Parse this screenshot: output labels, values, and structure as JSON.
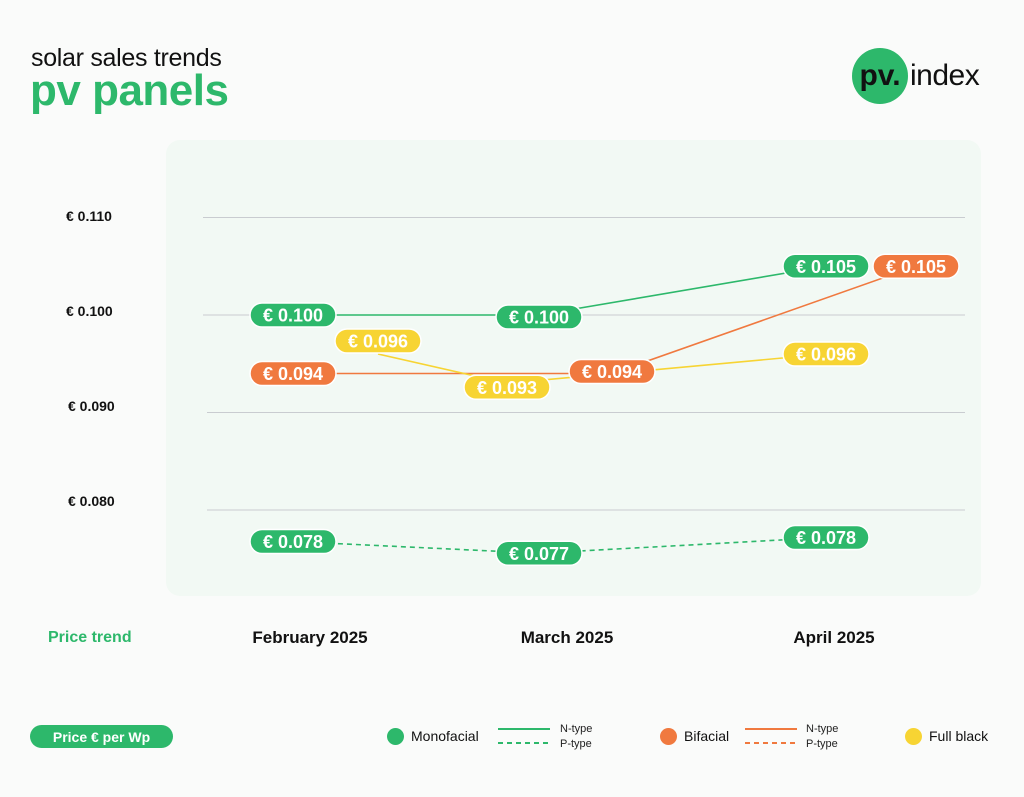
{
  "header": {
    "subtitle": "solar sales trends",
    "title": "pv panels",
    "title_color": "#2db86b"
  },
  "logo": {
    "mark": "pv.",
    "word": "index",
    "color": "#2db86b"
  },
  "footer": {
    "trend_label": "Price trend",
    "unit_label": "Price € per Wp"
  },
  "legend": {
    "monofacial": "Monofacial",
    "bifacial": "Bifacial",
    "full_black": "Full black",
    "n_type": "N-type",
    "p_type": "P-type"
  },
  "colors": {
    "green": "#2db86b",
    "orange": "#f0793f",
    "yellow": "#f7d433"
  },
  "chart_data": {
    "type": "line",
    "categories": [
      "February 2025",
      "March 2025",
      "April 2025"
    ],
    "y_ticks": [
      "€ 0.110",
      "€ 0.100",
      "€ 0.090",
      "€ 0.080"
    ],
    "y_tick_values": [
      0.11,
      0.1,
      0.09,
      0.08
    ],
    "series": [
      {
        "name": "Monofacial N-type",
        "color": "#2db86b",
        "dashed": false,
        "values": [
          0.1,
          0.1,
          0.105
        ],
        "labels": [
          "€ 0.100",
          "€ 0.100",
          "€ 0.105"
        ]
      },
      {
        "name": "Monofacial P-type",
        "color": "#2db86b",
        "dashed": true,
        "values": [
          0.078,
          0.077,
          0.078
        ],
        "labels": [
          "€ 0.078",
          "€ 0.077",
          "€ 0.078"
        ]
      },
      {
        "name": "Bifacial N-type",
        "color": "#f0793f",
        "dashed": false,
        "values": [
          0.094,
          0.094,
          0.105
        ],
        "labels": [
          "€ 0.094",
          "€ 0.094",
          "€ 0.105"
        ]
      },
      {
        "name": "Full black",
        "color": "#f7d433",
        "dashed": false,
        "values": [
          0.096,
          0.093,
          0.096
        ],
        "labels": [
          "€ 0.096",
          "€ 0.093",
          "€ 0.096"
        ]
      }
    ]
  }
}
